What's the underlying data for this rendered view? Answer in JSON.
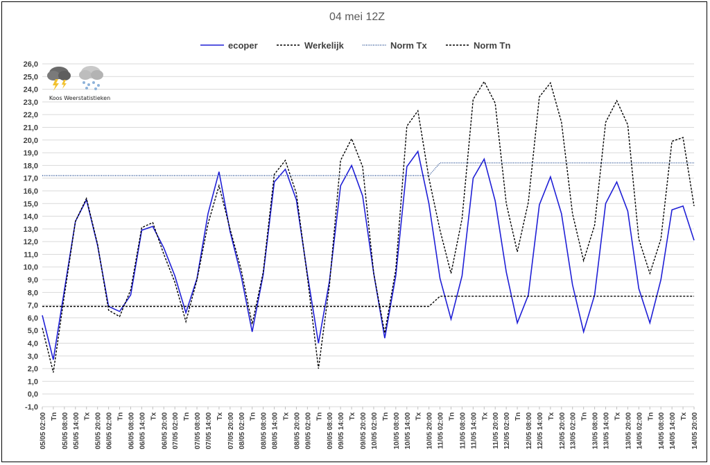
{
  "chart_data": {
    "type": "line",
    "title": "04 mei 12Z",
    "ylim": [
      -1,
      26
    ],
    "yticks": [
      "-1,0",
      "0,0",
      "1,0",
      "2,0",
      "3,0",
      "4,0",
      "5,0",
      "6,0",
      "7,0",
      "8,0",
      "9,0",
      "10,0",
      "11,0",
      "12,0",
      "13,0",
      "14,0",
      "15,0",
      "16,0",
      "17,0",
      "18,0",
      "19,0",
      "20,0",
      "21,0",
      "22,0",
      "23,0",
      "24,0",
      "25,0",
      "26,0"
    ],
    "grid": true,
    "legend_position": "top",
    "categories": [
      "05/05 02:00",
      "Tn",
      "05/05 08:00",
      "05/05 14:00",
      "Tx",
      "05/05 20:00",
      "06/05 02:00",
      "Tn",
      "06/05 08:00",
      "06/05 14:00",
      "Tx",
      "06/05 20:00",
      "07/05 02:00",
      "Tn",
      "07/05 08:00",
      "07/05 14:00",
      "Tx",
      "07/05 20:00",
      "08/05 02:00",
      "Tn",
      "08/05 08:00",
      "08/05 14:00",
      "Tx",
      "08/05 20:00",
      "09/05 02:00",
      "Tn",
      "09/05 08:00",
      "09/05 14:00",
      "Tx",
      "09/05 20:00",
      "10/05 02:00",
      "Tn",
      "10/05 08:00",
      "10/05 14:00",
      "Tx",
      "10/05 20:00",
      "11/05 02:00",
      "Tn",
      "11/05 08:00",
      "11/05 14:00",
      "Tx",
      "11/05 20:00",
      "12/05 02:00",
      "Tn",
      "12/05 08:00",
      "12/05 14:00",
      "Tx",
      "12/05 20:00",
      "13/05 02:00",
      "Tn",
      "13/05 08:00",
      "13/05 14:00",
      "Tx",
      "13/05 20:00",
      "14/05 02:00",
      "Tn",
      "14/05 08:00",
      "14/05 14:00",
      "Tx",
      "14/05 20:00"
    ],
    "series": [
      {
        "name": "ecoper",
        "color": "#1f1fd6",
        "style": "solid",
        "values": [
          6.2,
          2.7,
          8.2,
          13.6,
          15.3,
          11.7,
          6.9,
          6.5,
          7.8,
          12.9,
          13.2,
          11.5,
          9.3,
          6.4,
          9.1,
          14.2,
          17.5,
          12.8,
          9.3,
          4.9,
          9.4,
          16.7,
          17.7,
          15.3,
          9.4,
          4.0,
          8.9,
          16.4,
          18.0,
          15.6,
          9.5,
          4.4,
          9.3,
          17.9,
          19.1,
          15.0,
          9.1,
          5.9,
          9.3,
          17.0,
          18.5,
          15.2,
          9.6,
          5.6,
          7.8,
          14.9,
          17.1,
          14.2,
          8.6,
          4.9,
          7.8,
          15.0,
          16.7,
          14.4,
          8.3,
          5.6,
          9.0,
          14.5,
          14.8,
          12.1
        ]
      },
      {
        "name": "Werkelijk",
        "color": "#000000",
        "style": "dashed",
        "values": [
          5.2,
          1.7,
          7.8,
          13.6,
          15.4,
          11.8,
          6.6,
          6.1,
          8.2,
          13.1,
          13.5,
          11.0,
          8.8,
          5.7,
          9.0,
          13.4,
          16.4,
          13.0,
          9.8,
          5.5,
          9.6,
          17.3,
          18.4,
          15.8,
          9.2,
          2.0,
          8.6,
          18.4,
          20.1,
          17.9,
          9.5,
          4.8,
          9.8,
          21.1,
          22.3,
          17.0,
          12.9,
          9.5,
          13.8,
          23.2,
          24.6,
          22.9,
          15.0,
          11.2,
          15.1,
          23.4,
          24.5,
          21.4,
          14.2,
          10.5,
          13.3,
          21.4,
          23.1,
          21.2,
          12.2,
          9.5,
          12.2,
          19.9,
          20.2,
          14.8
        ]
      },
      {
        "name": "Norm Tx",
        "color": "#2f5597",
        "style": "dotted",
        "values": [
          17.2,
          17.2,
          17.2,
          17.2,
          17.2,
          17.2,
          17.2,
          17.2,
          17.2,
          17.2,
          17.2,
          17.2,
          17.2,
          17.2,
          17.2,
          17.2,
          17.2,
          17.2,
          17.2,
          17.2,
          17.2,
          17.2,
          17.2,
          17.2,
          17.2,
          17.2,
          17.2,
          17.2,
          17.2,
          17.2,
          17.2,
          17.2,
          17.2,
          17.2,
          17.2,
          17.2,
          18.2,
          18.2,
          18.2,
          18.2,
          18.2,
          18.2,
          18.2,
          18.2,
          18.2,
          18.2,
          18.2,
          18.2,
          18.2,
          18.2,
          18.2,
          18.2,
          18.2,
          18.2,
          18.2,
          18.2,
          18.2,
          18.2,
          18.2,
          18.2
        ]
      },
      {
        "name": "Norm Tn",
        "color": "#000000",
        "style": "dashed",
        "values": [
          6.9,
          6.9,
          6.9,
          6.9,
          6.9,
          6.9,
          6.9,
          6.9,
          6.9,
          6.9,
          6.9,
          6.9,
          6.9,
          6.9,
          6.9,
          6.9,
          6.9,
          6.9,
          6.9,
          6.9,
          6.9,
          6.9,
          6.9,
          6.9,
          6.9,
          6.9,
          6.9,
          6.9,
          6.9,
          6.9,
          6.9,
          6.9,
          6.9,
          6.9,
          6.9,
          6.9,
          7.7,
          7.7,
          7.7,
          7.7,
          7.7,
          7.7,
          7.7,
          7.7,
          7.7,
          7.7,
          7.7,
          7.7,
          7.7,
          7.7,
          7.7,
          7.7,
          7.7,
          7.7,
          7.7,
          7.7,
          7.7,
          7.7,
          7.7,
          7.7
        ]
      }
    ]
  },
  "logo": {
    "text": "Koos Weerstatistieken",
    "icons": [
      "thunderstorm-cloud-icon",
      "snow-cloud-icon"
    ]
  }
}
